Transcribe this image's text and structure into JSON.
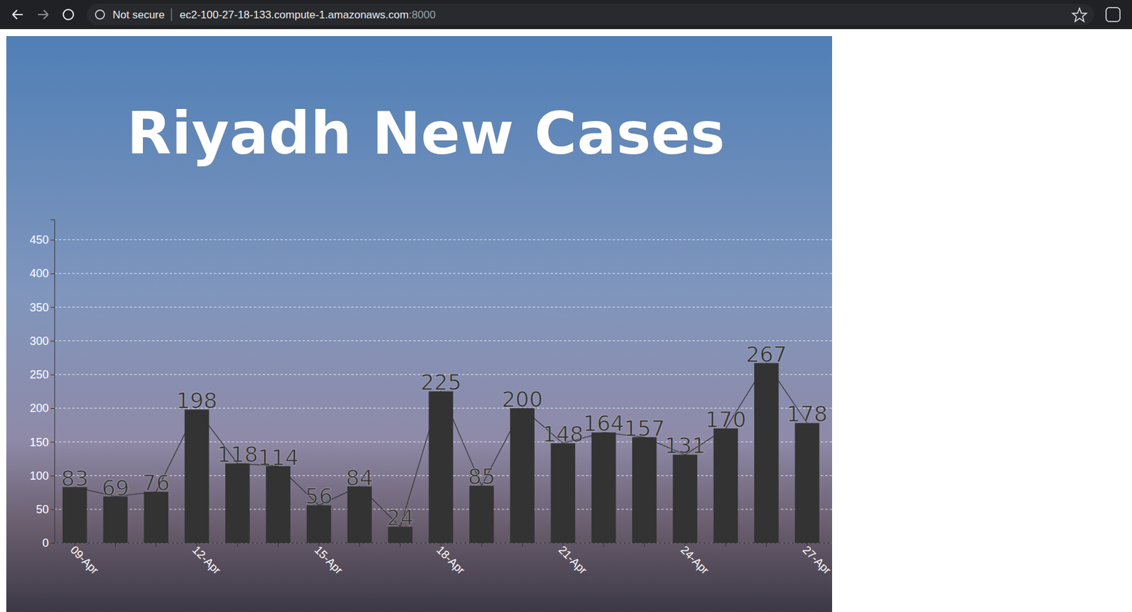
{
  "browser": {
    "security": "Not secure",
    "host": "ec2-100-27-18-133.compute-1.amazonaws.com",
    "port": ":8000"
  },
  "chart_data": {
    "type": "bar",
    "title": "Riyadh New Cases",
    "categories": [
      "09-Apr",
      null,
      null,
      "12-Apr",
      null,
      null,
      "15-Apr",
      null,
      null,
      "18-Apr",
      null,
      null,
      "21-Apr",
      null,
      null,
      "24-Apr",
      null,
      null,
      "27-Apr"
    ],
    "values": [
      83,
      69,
      76,
      198,
      118,
      114,
      56,
      84,
      24,
      225,
      85,
      200,
      148,
      164,
      157,
      131,
      170,
      267,
      178
    ],
    "color": "#333333",
    "ylim": [
      0,
      480
    ],
    "yticks": [
      0,
      50,
      100,
      150,
      200,
      250,
      300,
      350,
      400,
      450
    ],
    "grid": true,
    "data_labels": true,
    "line_style": "solid"
  }
}
